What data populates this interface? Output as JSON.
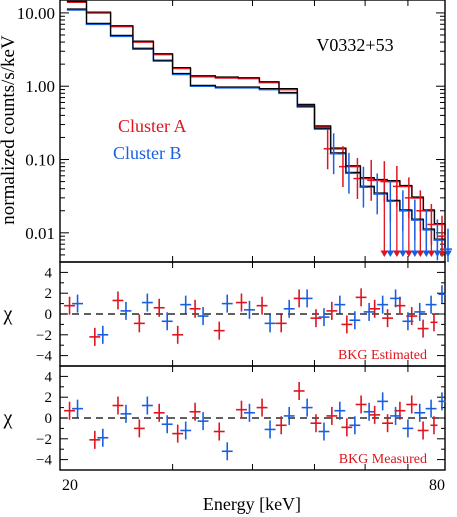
{
  "figure": {
    "x_axis_label": "Energy [keV]",
    "x_tick_labels": [
      "20",
      "80"
    ],
    "source_label": "V0332+53",
    "legend": [
      {
        "label": "Cluster A",
        "color": "#e0141e"
      },
      {
        "label": "Cluster B",
        "color": "#1a5fe0"
      }
    ],
    "colors": {
      "cluster_a": "#e0141e",
      "cluster_b": "#1a5fe0",
      "model": "#000000",
      "frame": "#000000"
    }
  },
  "chart_data": [
    {
      "type": "line",
      "panel": "spectrum",
      "ylabel": "normalized counts/s/keV",
      "yscale": "log",
      "ylim": [
        0.004,
        15
      ],
      "xlim": [
        20,
        80
      ],
      "yticks": [
        0.01,
        0.1,
        1.0,
        10.0
      ],
      "ytick_labels": [
        "0.01",
        "0.10",
        "1.00",
        "10.00"
      ],
      "x": [
        20.5,
        22,
        24,
        26,
        28,
        30,
        32,
        35,
        38,
        41,
        44,
        47,
        50,
        53,
        56,
        59,
        62,
        65,
        68,
        71,
        74,
        77,
        80
      ],
      "series": [
        {
          "name": "Cluster A",
          "values": [
            14,
            10,
            6.5,
            4.0,
            2.7,
            1.75,
            1.35,
            1.3,
            1.27,
            1.12,
            0.9,
            0.55,
            0.28,
            0.14,
            0.08,
            0.055,
            0.052,
            0.05,
            0.043,
            0.03,
            0.02,
            0.013,
            0.009
          ]
        },
        {
          "name": "Cluster B",
          "values": [
            11,
            7.0,
            4.8,
            3.2,
            2.2,
            1.45,
            1.0,
            0.95,
            0.95,
            0.9,
            0.8,
            0.52,
            0.26,
            0.12,
            0.065,
            0.042,
            0.034,
            0.027,
            0.02,
            0.015,
            0.011,
            0.008,
            0.006
          ]
        }
      ],
      "annotations": [
        "V0332+53"
      ]
    },
    {
      "type": "scatter",
      "panel": "residuals-estimated",
      "ylabel": "χ",
      "ylim": [
        -5,
        5
      ],
      "yticks": [
        -4,
        -2,
        0,
        2,
        4
      ],
      "ytick_labels": [
        "−4",
        "−2",
        "0",
        "2",
        "4"
      ],
      "xlim": [
        20,
        80
      ],
      "x": [
        21.0,
        23.0,
        25.0,
        27.0,
        29.0,
        31.0,
        33.0,
        36.0,
        39.0,
        42.0,
        45.0,
        48.0,
        51.0,
        54.0,
        57.0,
        60.0,
        63.0,
        66.0,
        69.0,
        72.0,
        75.0,
        78.0
      ],
      "series": [
        {
          "name": "Cluster A",
          "values": [
            0.8,
            -2.2,
            1.3,
            -0.9,
            0.6,
            -2.0,
            0.5,
            -1.6,
            1.1,
            0.8,
            -0.9,
            1.5,
            -0.4,
            0.3,
            -1.0,
            1.6,
            0.5,
            -0.4,
            0.8,
            -0.2,
            -1.4,
            -0.8
          ]
        },
        {
          "name": "Cluster B",
          "values": [
            1.0,
            -2.0,
            0.3,
            1.1,
            -0.7,
            0.9,
            -0.2,
            1.0,
            0.4,
            -0.9,
            0.5,
            1.5,
            -0.3,
            0.9,
            -0.6,
            0.2,
            0.9,
            1.5,
            -0.7,
            0.2,
            0.9,
            1.9
          ]
        }
      ],
      "annotations": [
        "BKG Estimated"
      ]
    },
    {
      "type": "scatter",
      "panel": "residuals-measured",
      "ylabel": "χ",
      "ylim": [
        -5,
        5
      ],
      "yticks": [
        -4,
        -2,
        0,
        2,
        4
      ],
      "ytick_labels": [
        "−4",
        "−2",
        "0",
        "2",
        "4"
      ],
      "xlim": [
        20,
        80
      ],
      "x": [
        21.0,
        23.0,
        25.0,
        27.0,
        29.0,
        31.0,
        33.0,
        36.0,
        39.0,
        42.0,
        45.0,
        48.0,
        51.0,
        54.0,
        57.0,
        60.0,
        63.0,
        66.0,
        69.0,
        72.0,
        75.0,
        78.0
      ],
      "series": [
        {
          "name": "Cluster A",
          "values": [
            0.7,
            -2.1,
            1.2,
            -1.0,
            0.5,
            -1.5,
            0.6,
            -1.3,
            0.8,
            1.0,
            -0.7,
            2.6,
            -0.5,
            0.2,
            -0.9,
            1.3,
            0.3,
            -0.5,
            0.7,
            1.3,
            -1.2,
            -0.7
          ]
        },
        {
          "name": "Cluster B",
          "values": [
            0.9,
            -1.9,
            0.4,
            1.2,
            -0.6,
            -1.2,
            -0.3,
            -3.2,
            0.5,
            -1.1,
            0.2,
            1.0,
            -1.3,
            0.7,
            -0.7,
            0.6,
            1.6,
            0.2,
            -1.0,
            0.5,
            0.9,
            1.6
          ]
        }
      ],
      "annotations": [
        "BKG Measured"
      ]
    }
  ]
}
